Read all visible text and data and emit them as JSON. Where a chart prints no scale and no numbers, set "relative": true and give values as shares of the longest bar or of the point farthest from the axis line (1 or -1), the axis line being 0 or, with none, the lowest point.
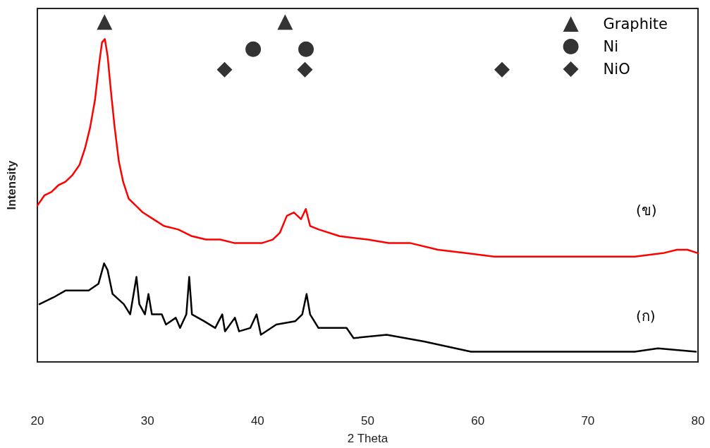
{
  "chart_data": {
    "type": "line",
    "xlabel": "2 Theta",
    "ylabel": "Intensity",
    "relative": true,
    "xlim": [
      20,
      80
    ],
    "xticks": [
      20,
      30,
      40,
      50,
      60,
      70,
      80
    ],
    "grid": false,
    "legend": "top right",
    "marker": "none",
    "line_style": "solid",
    "series": [
      {
        "color": "#ff0000",
        "x": [
          20,
          20.64,
          21.28,
          21.91,
          22.55,
          23.19,
          23.83,
          24.34,
          24.79,
          25.23,
          25.62,
          25.87,
          26.13,
          26.38,
          26.7,
          27.02,
          27.4,
          27.79,
          28.3,
          28.94,
          29.57,
          30.53,
          31.49,
          32.77,
          34.04,
          35.32,
          36.6,
          37.87,
          39.15,
          40.43,
          41.38,
          42.02,
          42.66,
          43.3,
          43.94,
          44.38,
          44.77,
          45.53,
          47.45,
          50,
          51.91,
          53.83,
          56.38,
          58.94,
          61.49,
          64.68,
          67.87,
          71.06,
          74.26,
          76.81,
          78.09,
          79.04,
          80
        ],
        "values": [
          0.46,
          0.49,
          0.5,
          0.52,
          0.53,
          0.55,
          0.58,
          0.63,
          0.69,
          0.77,
          0.88,
          0.94,
          0.95,
          0.9,
          0.79,
          0.69,
          0.59,
          0.53,
          0.48,
          0.46,
          0.44,
          0.42,
          0.4,
          0.39,
          0.37,
          0.36,
          0.36,
          0.35,
          0.35,
          0.35,
          0.36,
          0.38,
          0.43,
          0.44,
          0.42,
          0.45,
          0.4,
          0.39,
          0.37,
          0.36,
          0.35,
          0.35,
          0.33,
          0.32,
          0.31,
          0.31,
          0.31,
          0.31,
          0.31,
          0.32,
          0.33,
          0.33,
          0.32
        ]
      },
      {
        "color": "#000000",
        "x": [
          20.19,
          21.47,
          22.55,
          24.66,
          25.55,
          26.06,
          26.38,
          26.83,
          27.85,
          28.43,
          29,
          29.26,
          29.77,
          30.09,
          30.4,
          31.3,
          31.68,
          32.57,
          32.96,
          33.53,
          33.79,
          34.04,
          35.13,
          36.15,
          36.79,
          37.04,
          37.94,
          38.32,
          39.34,
          39.91,
          40.3,
          41.7,
          43.43,
          44.06,
          44.45,
          44.77,
          45.53,
          46.62,
          48.08,
          48.72,
          51.72,
          55.11,
          59.38,
          65.77,
          68.96,
          74.26,
          76.36,
          79.81
        ],
        "values": [
          0.17,
          0.19,
          0.21,
          0.21,
          0.23,
          0.29,
          0.27,
          0.2,
          0.17,
          0.14,
          0.25,
          0.17,
          0.14,
          0.2,
          0.14,
          0.14,
          0.11,
          0.13,
          0.1,
          0.14,
          0.25,
          0.14,
          0.12,
          0.1,
          0.14,
          0.09,
          0.13,
          0.09,
          0.1,
          0.14,
          0.08,
          0.11,
          0.12,
          0.14,
          0.2,
          0.14,
          0.1,
          0.1,
          0.1,
          0.07,
          0.08,
          0.06,
          0.03,
          0.03,
          0.03,
          0.03,
          0.04,
          0.03
        ]
      },
      {
        "name": "Graphite",
        "type": "scatter",
        "marker": "triangle",
        "color": "#000000",
        "x": [
          26.1,
          42.5
        ],
        "values": [
          1.0,
          1.0
        ]
      },
      {
        "name": "Ni",
        "type": "scatter",
        "marker": "circle",
        "color": "#000000",
        "x": [
          39.6,
          44.4
        ],
        "values": [
          0.92,
          0.92
        ]
      },
      {
        "name": "NiO",
        "type": "scatter",
        "marker": "diamond",
        "color": "#000000",
        "x": [
          37.0,
          44.3,
          62.2
        ],
        "values": [
          0.86,
          0.86,
          0.86
        ]
      }
    ],
    "annotations": [
      "(ข)",
      "(ก)"
    ]
  }
}
